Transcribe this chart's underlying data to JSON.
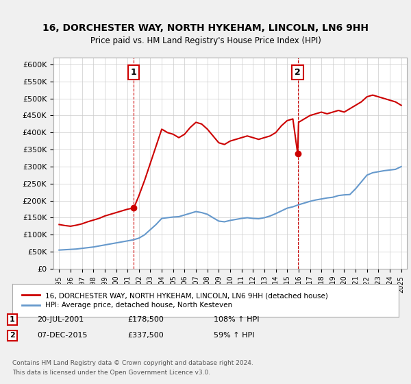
{
  "title": "16, DORCHESTER WAY, NORTH HYKEHAM, LINCOLN, LN6 9HH",
  "subtitle": "Price paid vs. HM Land Registry's House Price Index (HPI)",
  "ylabel_ticks": [
    "£0",
    "£50K",
    "£100K",
    "£150K",
    "£200K",
    "£250K",
    "£300K",
    "£350K",
    "£400K",
    "£450K",
    "£500K",
    "£550K",
    "£600K"
  ],
  "ytick_values": [
    0,
    50000,
    100000,
    150000,
    200000,
    250000,
    300000,
    350000,
    400000,
    450000,
    500000,
    550000,
    600000
  ],
  "xlim_years": [
    1994.5,
    2025.5
  ],
  "ylim": [
    0,
    620000
  ],
  "red_color": "#cc0000",
  "blue_color": "#6699cc",
  "marker1_year": 2001.55,
  "marker1_value": 178500,
  "marker2_year": 2015.92,
  "marker2_value": 337500,
  "legend_label_red": "16, DORCHESTER WAY, NORTH HYKEHAM, LINCOLN, LN6 9HH (detached house)",
  "legend_label_blue": "HPI: Average price, detached house, North Kesteven",
  "table_rows": [
    {
      "num": "1",
      "date": "20-JUL-2001",
      "price": "£178,500",
      "hpi": "108% ↑ HPI"
    },
    {
      "num": "2",
      "date": "07-DEC-2015",
      "price": "£337,500",
      "hpi": "59% ↑ HPI"
    }
  ],
  "footnote1": "Contains HM Land Registry data © Crown copyright and database right 2024.",
  "footnote2": "This data is licensed under the Open Government Licence v3.0.",
  "background_color": "#f0f0f0",
  "plot_bg_color": "#ffffff",
  "red_line_data": {
    "years": [
      1995.0,
      1995.5,
      1996.0,
      1996.5,
      1997.0,
      1997.5,
      1998.0,
      1998.5,
      1999.0,
      1999.5,
      2000.0,
      2000.5,
      2001.0,
      2001.55,
      2002.0,
      2002.5,
      2003.0,
      2003.5,
      2004.0,
      2004.5,
      2005.0,
      2005.5,
      2006.0,
      2006.5,
      2007.0,
      2007.5,
      2008.0,
      2008.5,
      2009.0,
      2009.5,
      2010.0,
      2010.5,
      2011.0,
      2011.5,
      2012.0,
      2012.5,
      2013.0,
      2013.5,
      2014.0,
      2014.5,
      2015.0,
      2015.5,
      2015.92,
      2016.0,
      2016.5,
      2017.0,
      2017.5,
      2018.0,
      2018.5,
      2019.0,
      2019.5,
      2020.0,
      2020.5,
      2021.0,
      2021.5,
      2022.0,
      2022.5,
      2023.0,
      2023.5,
      2024.0,
      2024.5,
      2025.0
    ],
    "values": [
      130000,
      127000,
      125000,
      128000,
      132000,
      138000,
      143000,
      148000,
      155000,
      160000,
      165000,
      170000,
      175000,
      178500,
      215000,
      260000,
      310000,
      360000,
      410000,
      400000,
      395000,
      385000,
      395000,
      415000,
      430000,
      425000,
      410000,
      390000,
      370000,
      365000,
      375000,
      380000,
      385000,
      390000,
      385000,
      380000,
      385000,
      390000,
      400000,
      420000,
      435000,
      440000,
      337500,
      430000,
      440000,
      450000,
      455000,
      460000,
      455000,
      460000,
      465000,
      460000,
      470000,
      480000,
      490000,
      505000,
      510000,
      505000,
      500000,
      495000,
      490000,
      480000
    ]
  },
  "blue_line_data": {
    "years": [
      1995.0,
      1995.5,
      1996.0,
      1996.5,
      1997.0,
      1997.5,
      1998.0,
      1998.5,
      1999.0,
      1999.5,
      2000.0,
      2000.5,
      2001.0,
      2001.5,
      2002.0,
      2002.5,
      2003.0,
      2003.5,
      2004.0,
      2004.5,
      2005.0,
      2005.5,
      2006.0,
      2006.5,
      2007.0,
      2007.5,
      2008.0,
      2008.5,
      2009.0,
      2009.5,
      2010.0,
      2010.5,
      2011.0,
      2011.5,
      2012.0,
      2012.5,
      2013.0,
      2013.5,
      2014.0,
      2014.5,
      2015.0,
      2015.5,
      2016.0,
      2016.5,
      2017.0,
      2017.5,
      2018.0,
      2018.5,
      2019.0,
      2019.5,
      2020.0,
      2020.5,
      2021.0,
      2021.5,
      2022.0,
      2022.5,
      2023.0,
      2023.5,
      2024.0,
      2024.5,
      2025.0
    ],
    "values": [
      55000,
      56000,
      57000,
      58000,
      60000,
      62000,
      64000,
      67000,
      70000,
      73000,
      76000,
      79000,
      82000,
      85000,
      90000,
      100000,
      115000,
      130000,
      148000,
      150000,
      152000,
      153000,
      158000,
      163000,
      168000,
      165000,
      160000,
      150000,
      140000,
      138000,
      142000,
      145000,
      148000,
      150000,
      148000,
      147000,
      150000,
      155000,
      162000,
      170000,
      178000,
      182000,
      188000,
      193000,
      198000,
      202000,
      205000,
      208000,
      210000,
      215000,
      217000,
      218000,
      235000,
      255000,
      275000,
      282000,
      285000,
      288000,
      290000,
      292000,
      300000
    ]
  }
}
